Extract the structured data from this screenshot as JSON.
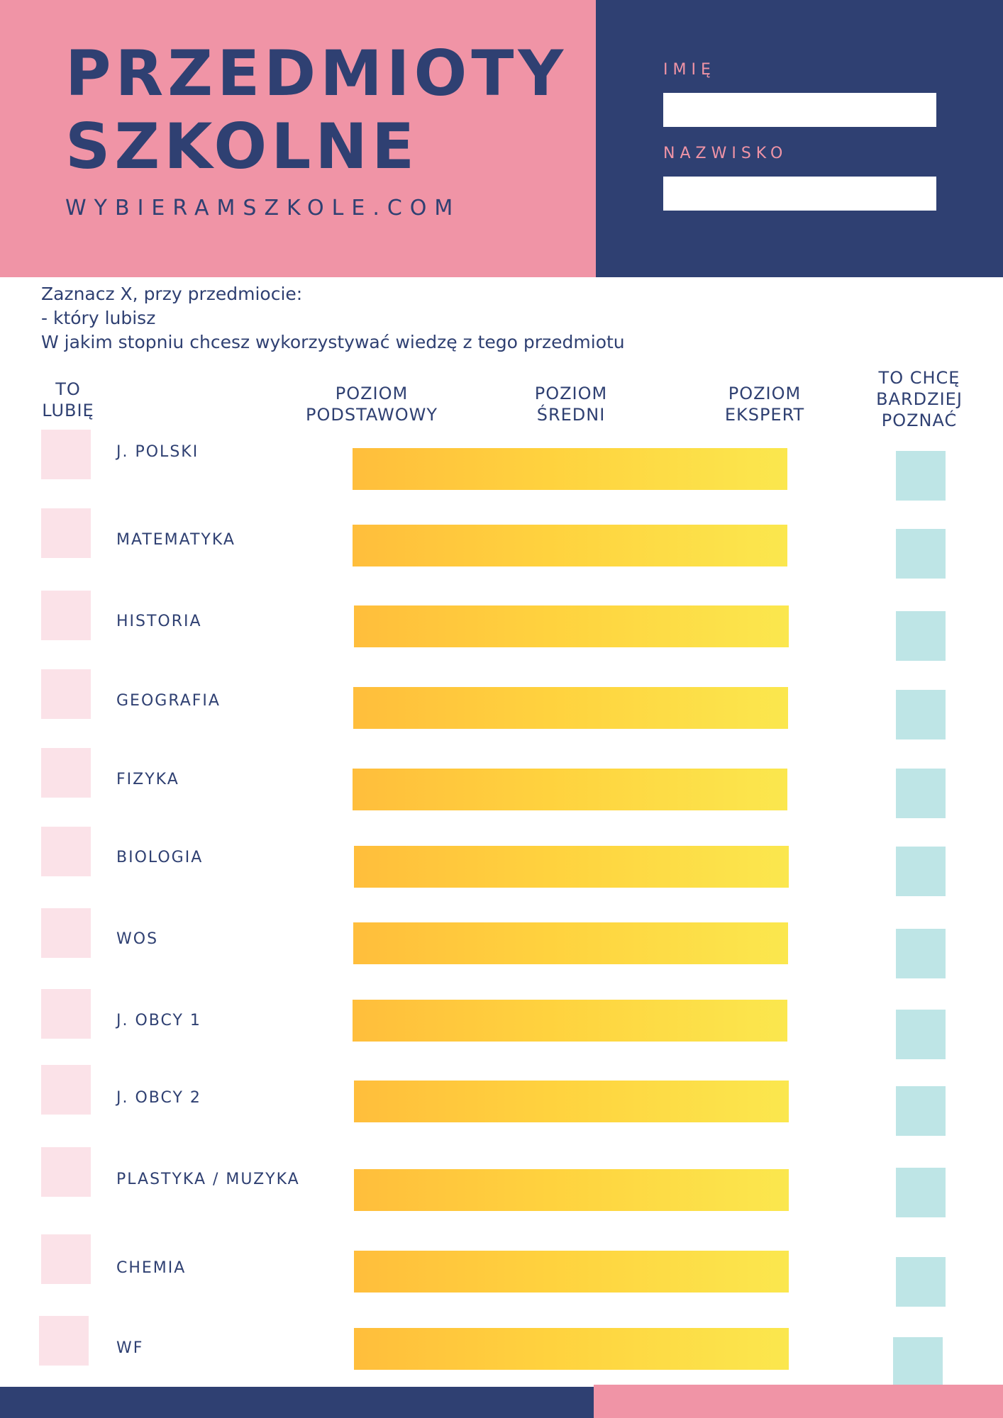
{
  "header": {
    "title_line1": "PRZEDMIOTY",
    "title_line2": "SZKOLNE",
    "website": "WYBIERAMSZKOLE.COM",
    "first_name_label": "IMIĘ",
    "first_name_value": "",
    "last_name_label": "NAZWISKO",
    "last_name_value": ""
  },
  "instructions": {
    "line1": "Zaznacz X, przy przedmiocie:",
    "line2": "- który lubisz",
    "line3": "W jakim stopniu chcesz wykorzystywać wiedzę z tego przedmiotu"
  },
  "columns": {
    "like": "TO\nLUBIĘ",
    "basic": "POZIOM\nPODSTAWOWY",
    "medium": "POZIOM\nŚREDNI",
    "expert": "POZIOM\nEKSPERT",
    "learn_more": "TO CHCĘ\nBARDZIEJ\nPOZNAĆ"
  },
  "subjects": [
    "J. POLSKI",
    "MATEMATYKA",
    "HISTORIA",
    "GEOGRAFIA",
    "FIZYKA",
    "BIOLOGIA",
    "WOS",
    "J. OBCY 1",
    "J. OBCY 2",
    "PLASTYKA / MUZYKA",
    "CHEMIA",
    "WF"
  ],
  "colors": {
    "navy": "#2f4072",
    "pink": "#f094a6",
    "light_pink": "#fbe2e8",
    "light_teal": "#bee5e6",
    "bar_start": "#ffbe3c",
    "bar_end": "#fbe74e"
  }
}
